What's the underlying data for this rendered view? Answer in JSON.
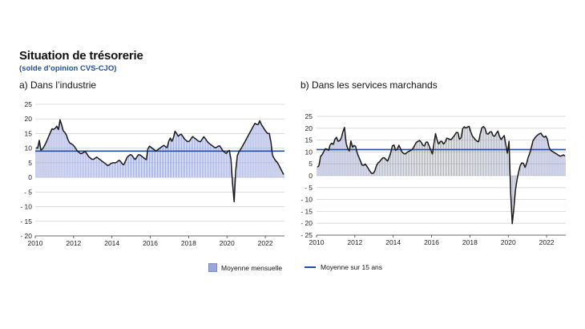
{
  "title": "Situation de trésorerie",
  "subtitle": "(solde d’opinion CVS-CJO)",
  "legend": {
    "bars_label": "Moyenne mensuelle",
    "line_label": "Moyenne sur 15 ans"
  },
  "colors": {
    "bar_fill": "#c9cfec",
    "bar_stroke": "#8c97cf",
    "line": "#1a1a1a",
    "mean_line": "#1f4fa0",
    "subtitle": "#1f4fa0"
  },
  "chart_data": [
    {
      "type": "bar",
      "panel_title": "a)  Dans l’industrie",
      "x_start_year": 2010,
      "x_end_year": 2023,
      "x_ticks": [
        "2010",
        "2012",
        "2014",
        "2016",
        "2018",
        "2020",
        "2022"
      ],
      "ylim": [
        -20,
        25
      ],
      "y_ticks": [
        "25",
        "20",
        "15",
        "10",
        "5",
        "0",
        "- 5",
        "- 10",
        "- 15",
        "- 20"
      ],
      "mean_15y": 9,
      "anchors": [
        [
          2010.0,
          11
        ],
        [
          2010.1,
          9
        ],
        [
          2010.2,
          13
        ],
        [
          2010.3,
          9
        ],
        [
          2010.5,
          11
        ],
        [
          2010.7,
          14
        ],
        [
          2010.9,
          17
        ],
        [
          2011.0,
          16
        ],
        [
          2011.1,
          18
        ],
        [
          2011.2,
          16
        ],
        [
          2011.3,
          20
        ],
        [
          2011.45,
          16
        ],
        [
          2011.6,
          15
        ],
        [
          2011.75,
          12
        ],
        [
          2012.0,
          11
        ],
        [
          2012.2,
          9
        ],
        [
          2012.4,
          8
        ],
        [
          2012.6,
          9
        ],
        [
          2012.8,
          7
        ],
        [
          2013.0,
          6
        ],
        [
          2013.2,
          7
        ],
        [
          2013.4,
          6
        ],
        [
          2013.6,
          5
        ],
        [
          2013.8,
          4
        ],
        [
          2014.0,
          5
        ],
        [
          2014.2,
          5
        ],
        [
          2014.4,
          6
        ],
        [
          2014.6,
          4
        ],
        [
          2014.8,
          7
        ],
        [
          2015.0,
          8
        ],
        [
          2015.2,
          6
        ],
        [
          2015.4,
          8
        ],
        [
          2015.6,
          7
        ],
        [
          2015.8,
          6
        ],
        [
          2015.9,
          11
        ],
        [
          2016.1,
          10
        ],
        [
          2016.3,
          9
        ],
        [
          2016.5,
          10
        ],
        [
          2016.7,
          11
        ],
        [
          2016.9,
          10
        ],
        [
          2017.0,
          14
        ],
        [
          2017.15,
          12
        ],
        [
          2017.3,
          16
        ],
        [
          2017.45,
          14
        ],
        [
          2017.6,
          15
        ],
        [
          2017.8,
          13
        ],
        [
          2018.0,
          12
        ],
        [
          2018.2,
          14
        ],
        [
          2018.4,
          13
        ],
        [
          2018.6,
          12
        ],
        [
          2018.8,
          14
        ],
        [
          2019.0,
          12
        ],
        [
          2019.2,
          11
        ],
        [
          2019.4,
          10
        ],
        [
          2019.6,
          11
        ],
        [
          2019.8,
          9
        ],
        [
          2020.0,
          8
        ],
        [
          2020.1,
          10
        ],
        [
          2020.2,
          7
        ],
        [
          2020.3,
          -3
        ],
        [
          2020.37,
          -9
        ],
        [
          2020.45,
          2
        ],
        [
          2020.55,
          8
        ],
        [
          2020.75,
          10
        ],
        [
          2021.0,
          13
        ],
        [
          2021.25,
          16
        ],
        [
          2021.5,
          19
        ],
        [
          2021.6,
          17
        ],
        [
          2021.67,
          20
        ],
        [
          2021.8,
          18
        ],
        [
          2022.0,
          16
        ],
        [
          2022.1,
          15
        ],
        [
          2022.25,
          15
        ],
        [
          2022.35,
          8
        ],
        [
          2022.5,
          6
        ],
        [
          2022.65,
          5
        ],
        [
          2022.8,
          3
        ],
        [
          2022.95,
          1
        ],
        [
          2023.0,
          1
        ]
      ]
    },
    {
      "type": "bar",
      "panel_title": "b)  Dans les services marchands",
      "x_start_year": 2010,
      "x_end_year": 2023,
      "x_ticks": [
        "2010",
        "2012",
        "2014",
        "2016",
        "2018",
        "2020",
        "2022"
      ],
      "ylim": [
        -25,
        25
      ],
      "y_ticks": [
        "25",
        "20",
        "15",
        "10",
        "5",
        "0",
        "- 5",
        "- 10",
        "- 15",
        "- 20",
        "- 25"
      ],
      "mean_15y": 11,
      "anchors": [
        [
          2010.0,
          4
        ],
        [
          2010.1,
          3
        ],
        [
          2010.2,
          8
        ],
        [
          2010.3,
          9
        ],
        [
          2010.5,
          12
        ],
        [
          2010.6,
          10
        ],
        [
          2010.75,
          14
        ],
        [
          2010.9,
          13
        ],
        [
          2011.0,
          17
        ],
        [
          2011.15,
          14
        ],
        [
          2011.3,
          16
        ],
        [
          2011.45,
          21
        ],
        [
          2011.55,
          13
        ],
        [
          2011.7,
          10
        ],
        [
          2011.8,
          15
        ],
        [
          2011.9,
          11
        ],
        [
          2012.0,
          14
        ],
        [
          2012.1,
          10
        ],
        [
          2012.25,
          7
        ],
        [
          2012.4,
          4
        ],
        [
          2012.55,
          5
        ],
        [
          2012.7,
          3
        ],
        [
          2012.85,
          1
        ],
        [
          2013.0,
          1
        ],
        [
          2013.15,
          5
        ],
        [
          2013.3,
          6
        ],
        [
          2013.5,
          8
        ],
        [
          2013.7,
          6
        ],
        [
          2013.85,
          9
        ],
        [
          2014.0,
          14
        ],
        [
          2014.15,
          10
        ],
        [
          2014.3,
          13
        ],
        [
          2014.45,
          10
        ],
        [
          2014.6,
          9
        ],
        [
          2014.75,
          10
        ],
        [
          2015.0,
          11
        ],
        [
          2015.2,
          14
        ],
        [
          2015.4,
          15
        ],
        [
          2015.6,
          12
        ],
        [
          2015.75,
          15
        ],
        [
          2015.9,
          12
        ],
        [
          2016.05,
          9
        ],
        [
          2016.2,
          18
        ],
        [
          2016.35,
          13
        ],
        [
          2016.5,
          15
        ],
        [
          2016.65,
          13
        ],
        [
          2016.8,
          16
        ],
        [
          2017.0,
          15
        ],
        [
          2017.2,
          17
        ],
        [
          2017.35,
          19
        ],
        [
          2017.5,
          14
        ],
        [
          2017.65,
          21
        ],
        [
          2017.8,
          20
        ],
        [
          2017.95,
          21
        ],
        [
          2018.1,
          17
        ],
        [
          2018.3,
          15
        ],
        [
          2018.45,
          14
        ],
        [
          2018.6,
          20
        ],
        [
          2018.75,
          21
        ],
        [
          2018.9,
          17
        ],
        [
          2019.1,
          19
        ],
        [
          2019.25,
          16
        ],
        [
          2019.45,
          19
        ],
        [
          2019.6,
          15
        ],
        [
          2019.8,
          17
        ],
        [
          2019.95,
          9
        ],
        [
          2020.05,
          15
        ],
        [
          2020.12,
          -6
        ],
        [
          2020.2,
          -20
        ],
        [
          2020.25,
          -21
        ],
        [
          2020.32,
          -9
        ],
        [
          2020.45,
          -2
        ],
        [
          2020.6,
          4
        ],
        [
          2020.75,
          6
        ],
        [
          2020.9,
          3
        ],
        [
          2021.0,
          7
        ],
        [
          2021.15,
          10
        ],
        [
          2021.3,
          15
        ],
        [
          2021.5,
          17
        ],
        [
          2021.7,
          18
        ],
        [
          2021.85,
          16
        ],
        [
          2022.0,
          17
        ],
        [
          2022.15,
          11
        ],
        [
          2022.35,
          10
        ],
        [
          2022.55,
          9
        ],
        [
          2022.75,
          8
        ],
        [
          2022.85,
          9
        ],
        [
          2023.0,
          8
        ]
      ]
    }
  ]
}
